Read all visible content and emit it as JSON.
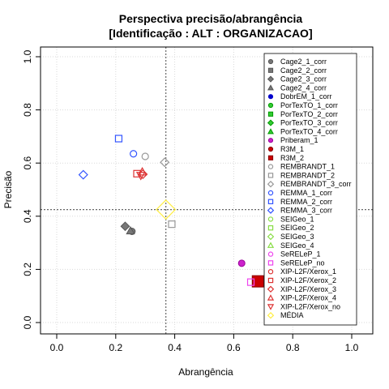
{
  "chart_data": {
    "type": "scatter",
    "title": "Perspectiva precisão/abrangência",
    "subtitle": "[Identificação : ALT : ORGANIZACAO]",
    "xlabel": "Abrangência",
    "ylabel": "Precisão",
    "xlim": [
      0,
      1
    ],
    "ylim": [
      0,
      1
    ],
    "xticks": [
      "0.0",
      "0.2",
      "0.4",
      "0.6",
      "0.8",
      "1.0"
    ],
    "yticks": [
      "0.0",
      "0.2",
      "0.4",
      "0.6",
      "0.8",
      "1.0"
    ],
    "grid": true,
    "reference_lines": {
      "x": 0.37,
      "y": 0.425
    },
    "legend_position": "top-right",
    "series": [
      {
        "name": "Cage2_1_corr",
        "shape": "circle",
        "color": "#555555",
        "fill": "#777777",
        "points": [
          [
            0.255,
            0.343
          ]
        ]
      },
      {
        "name": "Cage2_2_corr",
        "shape": "square",
        "color": "#555555",
        "fill": "#777777",
        "points": []
      },
      {
        "name": "Cage2_3_corr",
        "shape": "diamond",
        "color": "#555555",
        "fill": "#777777",
        "points": [
          [
            0.232,
            0.362
          ]
        ]
      },
      {
        "name": "Cage2_4_corr",
        "shape": "triangle",
        "color": "#555555",
        "fill": "#777777",
        "points": [
          [
            0.25,
            0.345
          ]
        ]
      },
      {
        "name": "DobrEM_1_corr",
        "shape": "circle",
        "color": "#0000cc",
        "fill": "#0000cc",
        "points": []
      },
      {
        "name": "PorTexTO_1_corr",
        "shape": "circle",
        "color": "#009900",
        "fill": "#33cc33",
        "points": []
      },
      {
        "name": "PorTexTO_2_corr",
        "shape": "square",
        "color": "#009900",
        "fill": "#33cc33",
        "points": []
      },
      {
        "name": "PorTexTO_3_corr",
        "shape": "diamond",
        "color": "#009900",
        "fill": "#33cc33",
        "points": []
      },
      {
        "name": "PorTexTO_4_corr",
        "shape": "triangle",
        "color": "#009900",
        "fill": "#33cc33",
        "points": []
      },
      {
        "name": "Priberam_1",
        "shape": "circle",
        "color": "#990099",
        "fill": "#cc22cc",
        "points": [
          [
            0.627,
            0.223
          ]
        ]
      },
      {
        "name": "R3M_1",
        "shape": "circle",
        "color": "#880000",
        "fill": "#cc0000",
        "points": []
      },
      {
        "name": "R3M_2",
        "shape": "square",
        "color": "#880000",
        "fill": "#cc0000",
        "points": [
          [
            0.682,
            0.155
          ]
        ]
      },
      {
        "name": "REMBRANDT_1",
        "shape": "circle-open",
        "color": "#999999",
        "points": [
          [
            0.3,
            0.625
          ]
        ]
      },
      {
        "name": "REMBRANDT_2",
        "shape": "square-open",
        "color": "#999999",
        "points": [
          [
            0.39,
            0.37
          ]
        ]
      },
      {
        "name": "REMBRANDT_3_corr",
        "shape": "diamond-open",
        "color": "#999999",
        "points": [
          [
            0.366,
            0.603
          ]
        ]
      },
      {
        "name": "REMMA_1_corr",
        "shape": "circle-open",
        "color": "#3355ff",
        "points": [
          [
            0.26,
            0.635
          ]
        ]
      },
      {
        "name": "REMMA_2_corr",
        "shape": "square-open",
        "color": "#3355ff",
        "points": [
          [
            0.21,
            0.692
          ]
        ]
      },
      {
        "name": "REMMA_3_corr",
        "shape": "diamond-open",
        "color": "#3355ff",
        "points": [
          [
            0.09,
            0.556
          ]
        ]
      },
      {
        "name": "SEIGeo_1",
        "shape": "circle-open",
        "color": "#88dd44",
        "points": []
      },
      {
        "name": "SEIGeo_2",
        "shape": "square-open",
        "color": "#88dd44",
        "points": []
      },
      {
        "name": "SEIGeo_3",
        "shape": "diamond-open",
        "color": "#88dd44",
        "points": []
      },
      {
        "name": "SEIGeo_4",
        "shape": "triangle-open",
        "color": "#88dd44",
        "points": []
      },
      {
        "name": "SeRELeP_1",
        "shape": "circle-open",
        "color": "#ee44ee",
        "points": []
      },
      {
        "name": "SeRELeP_no",
        "shape": "square-open",
        "color": "#ee44ee",
        "points": [
          [
            0.658,
            0.152
          ]
        ]
      },
      {
        "name": "XIP-L2F/Xerox_1",
        "shape": "circle-open",
        "color": "#dd3333",
        "points": []
      },
      {
        "name": "XIP-L2F/Xerox_2",
        "shape": "square-open",
        "color": "#dd3333",
        "points": [
          [
            0.272,
            0.56
          ]
        ]
      },
      {
        "name": "XIP-L2F/Xerox_3",
        "shape": "diamond-open",
        "color": "#dd3333",
        "points": [
          [
            0.292,
            0.558
          ]
        ]
      },
      {
        "name": "XIP-L2F/Xerox_4",
        "shape": "triangle-open",
        "color": "#dd3333",
        "points": [
          [
            0.29,
            0.567
          ]
        ]
      },
      {
        "name": "XIP-L2F/Xerox_no",
        "shape": "triangle-down-open",
        "color": "#dd3333",
        "points": [
          [
            0.285,
            0.553
          ]
        ]
      },
      {
        "name": "MÉDIA",
        "shape": "diamond-open",
        "color": "#ffee44",
        "points": [
          [
            0.37,
            0.425
          ]
        ]
      }
    ]
  }
}
